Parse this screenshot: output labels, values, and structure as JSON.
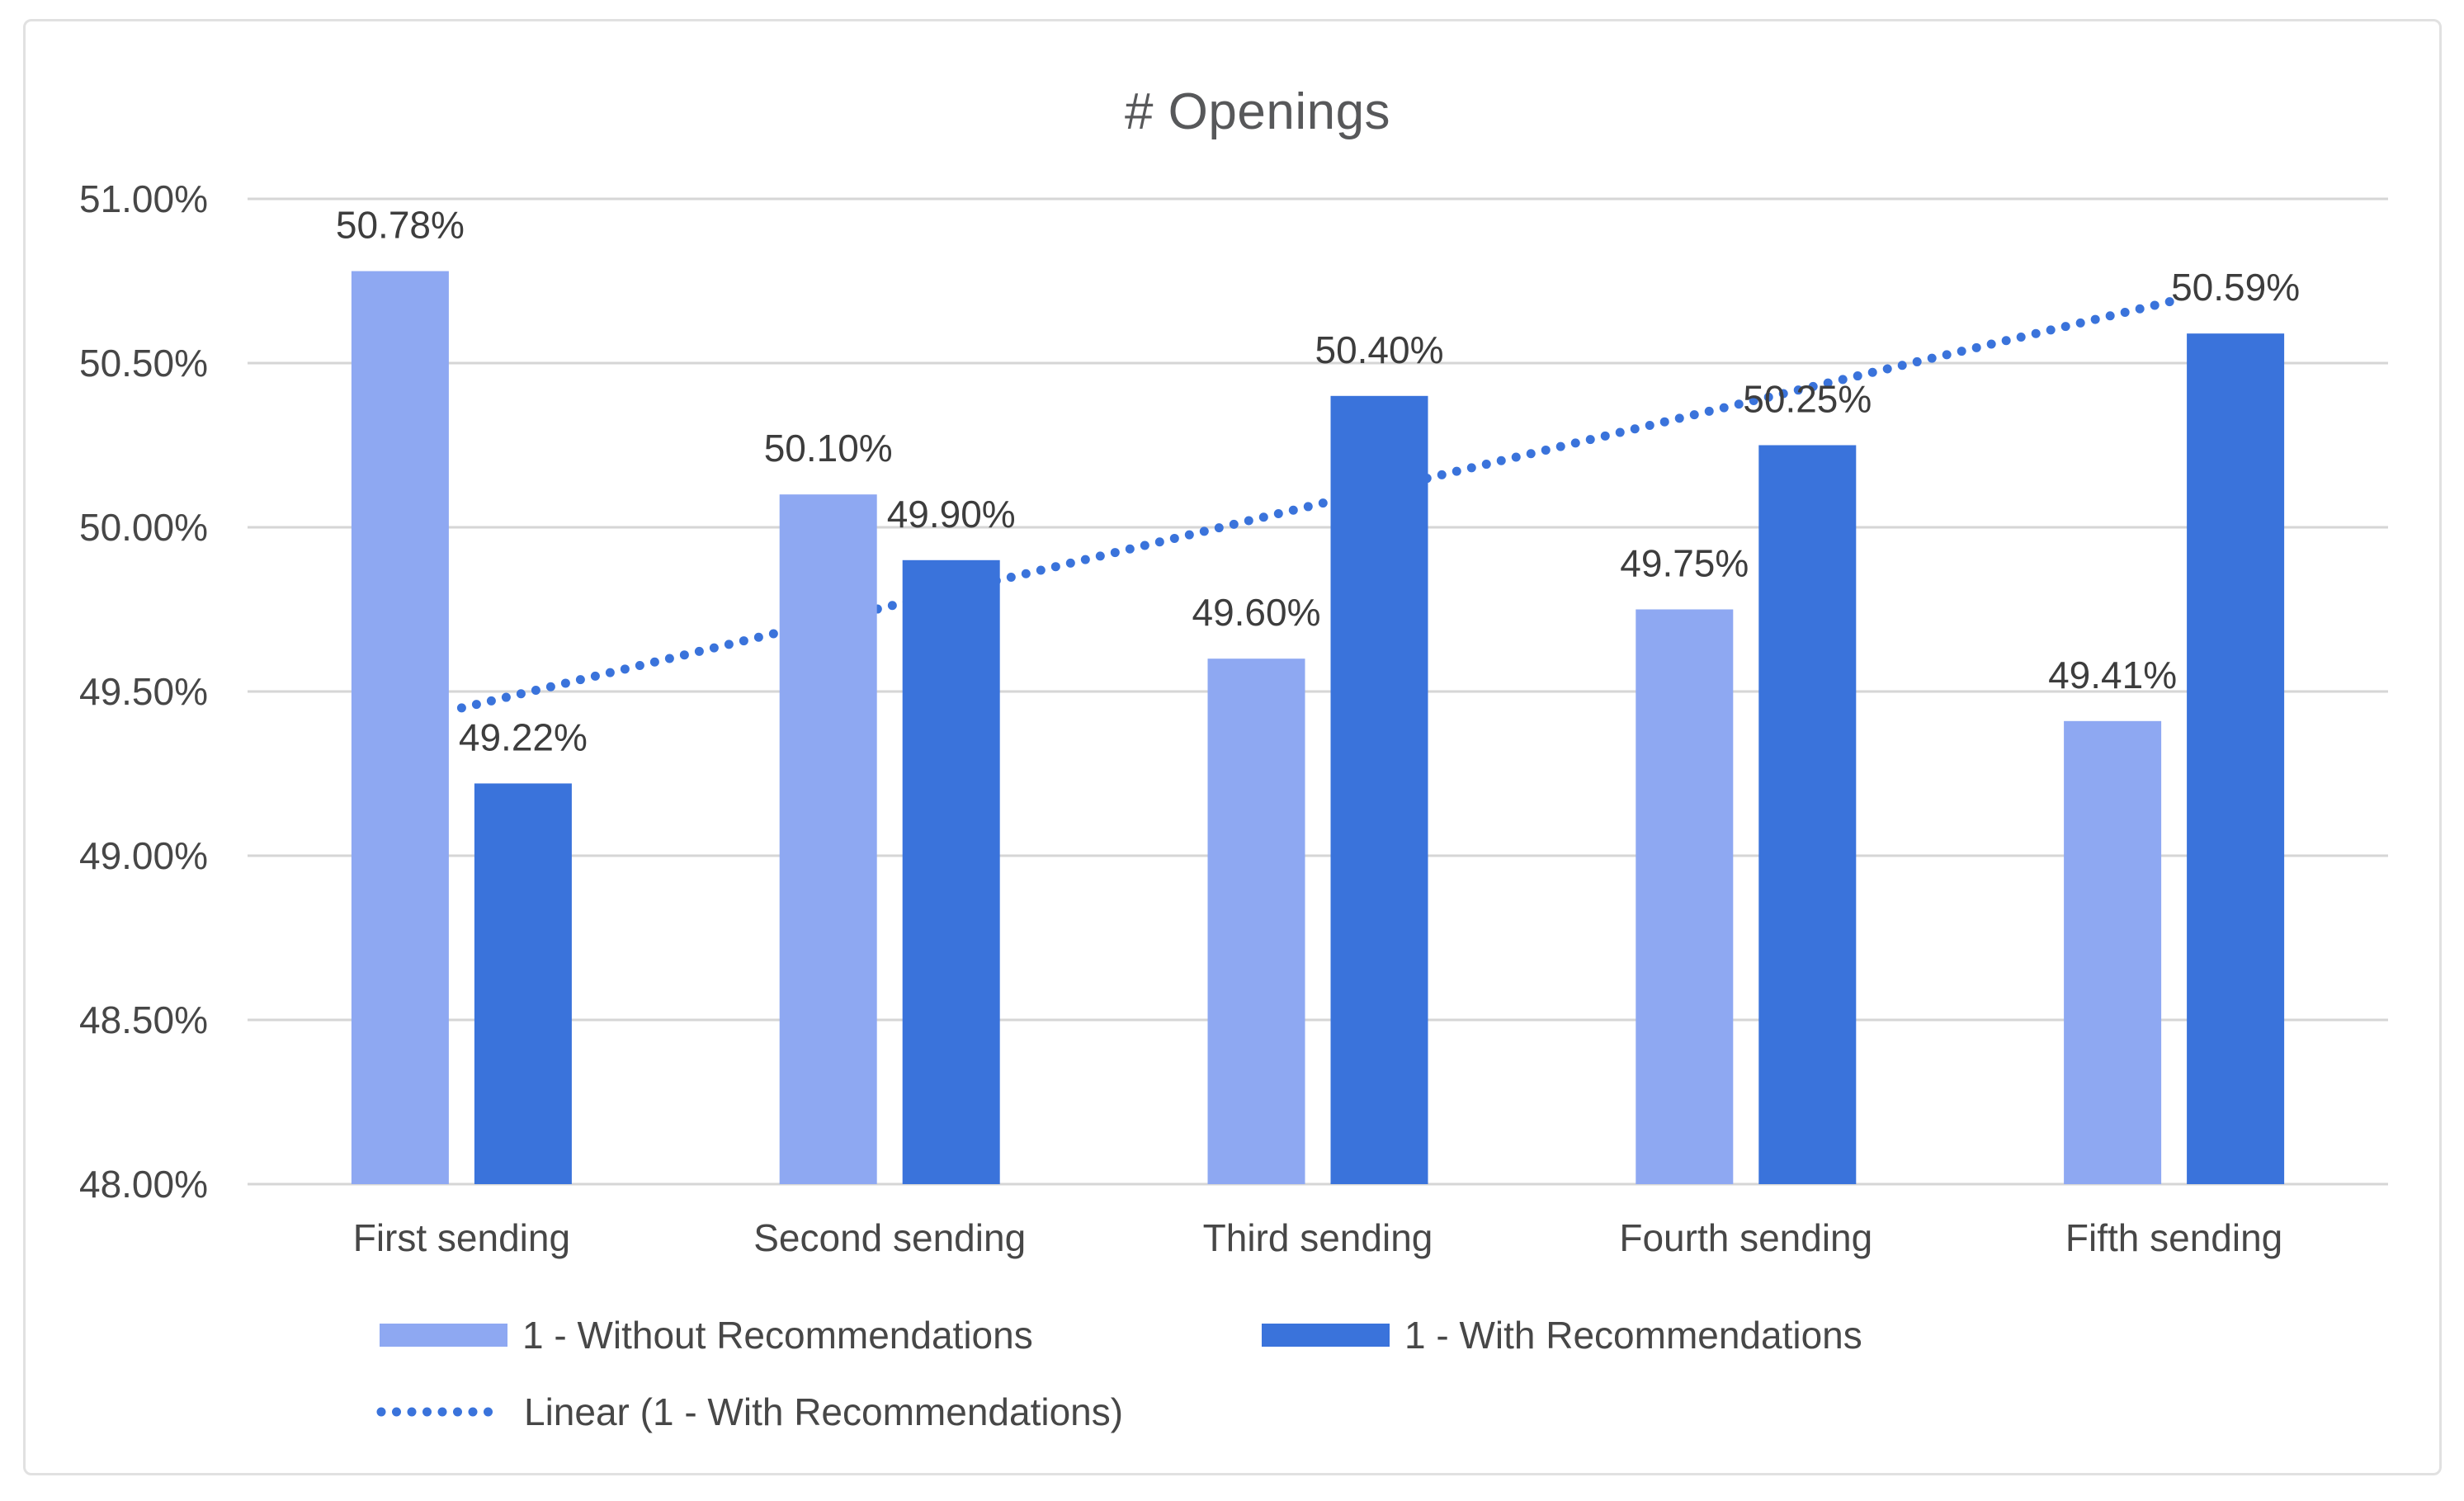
{
  "window": {
    "background": "#ffffff",
    "card_border_color": "#e1e1e1"
  },
  "chart_data": {
    "type": "bar",
    "title": "# Openings",
    "categories": [
      "First sending",
      "Second sending",
      "Third sending",
      "Fourth sending",
      "Fifth sending"
    ],
    "series": [
      {
        "name": "1 - Without Recommendations",
        "color": "#8EA8F2",
        "values": [
          50.78,
          50.1,
          49.6,
          49.75,
          49.41
        ],
        "data_labels": [
          "50.78%",
          "50.10%",
          "49.60%",
          "49.75%",
          "49.41%"
        ]
      },
      {
        "name": "1 - With Recommendations",
        "color": "#3A73DB",
        "values": [
          49.22,
          49.9,
          50.4,
          50.25,
          50.59
        ],
        "data_labels": [
          "49.22%",
          "49.90%",
          "50.40%",
          "50.25%",
          "50.59%"
        ]
      }
    ],
    "trendline": {
      "label": "Linear (1 - With Recommendations)",
      "color": "#3A73DB",
      "style": "dotted",
      "start_value": 49.45,
      "end_value": 50.69
    },
    "y_axis": {
      "min": 48.0,
      "max": 51.0,
      "step": 0.5,
      "tick_labels": [
        "51.00%",
        "50.50%",
        "50.00%",
        "49.50%",
        "49.00%",
        "48.50%",
        "48.00%"
      ],
      "format": "percent"
    },
    "grid": true,
    "gridline_color": "#d6d6d6",
    "axis_text_color": "#474747",
    "data_label_color": "#3d3d3d",
    "legend_position": "bottom"
  }
}
